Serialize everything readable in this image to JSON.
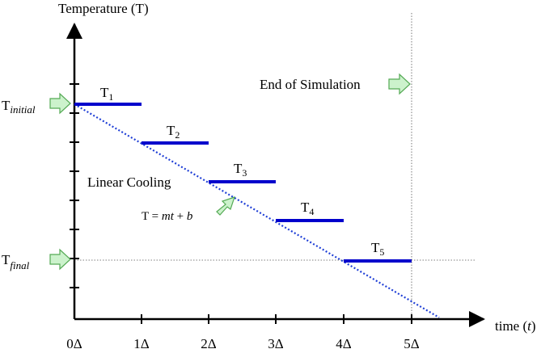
{
  "axes": {
    "y_label": "Temperature (T)",
    "x_label_prefix": "time (",
    "x_label_var": "t",
    "x_label_suffix": ")",
    "x_ticks": [
      "0Δ",
      "1Δ",
      "2Δ",
      "3Δ",
      "4Δ",
      "5Δ"
    ]
  },
  "y_markers": {
    "initial": {
      "base": "T",
      "sub": "initial"
    },
    "final": {
      "base": "T",
      "sub": "final"
    }
  },
  "steps": [
    {
      "base": "T",
      "sub": "1"
    },
    {
      "base": "T",
      "sub": "2"
    },
    {
      "base": "T",
      "sub": "3"
    },
    {
      "base": "T",
      "sub": "4"
    },
    {
      "base": "T",
      "sub": "5"
    }
  ],
  "annotations": {
    "end_label": "End of Simulation",
    "linear_label": "Linear Cooling",
    "eq_lhs": "T = ",
    "eq_m": "m",
    "eq_t": "t",
    "eq_plus": " + ",
    "eq_b": "b"
  },
  "colors": {
    "step": "#0000cc",
    "cooling_line": "#1f3fd6",
    "arrow_fill": "#ccf2cc",
    "arrow_stroke": "#55aa55",
    "axis": "#000000"
  }
}
